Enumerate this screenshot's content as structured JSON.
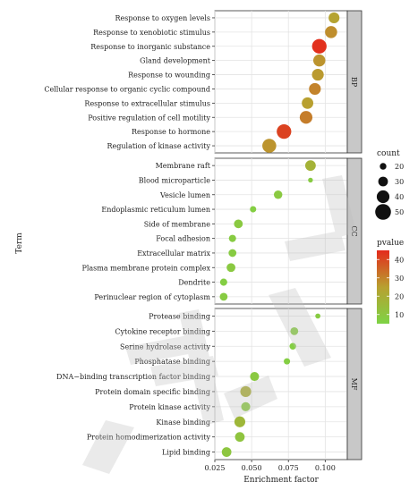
{
  "chart_data": {
    "type": "scatter",
    "xlabel": "Enrichment factor",
    "ylabel": "Term",
    "xlim": [
      0.025,
      0.115
    ],
    "xticks": [
      0.025,
      0.05,
      0.075,
      0.1
    ],
    "x_tick_labels": [
      "0.025",
      "0.050",
      "0.075",
      "0.100"
    ],
    "grid": true,
    "legend_position": "right",
    "size_legend": {
      "title": "count",
      "values": [
        20,
        30,
        40,
        50
      ]
    },
    "color_legend": {
      "title": "pvalue",
      "ticks": [
        10,
        20,
        30,
        40
      ],
      "range": [
        5,
        45
      ],
      "low_color": "#7ed345",
      "mid_color": "#b8a030",
      "high_color": "#e42a1c"
    },
    "panels": [
      {
        "name": "BP",
        "terms": [
          {
            "label": "Response to oxygen levels",
            "x": 0.106,
            "count": 34,
            "pvalue": 24
          },
          {
            "label": "Response to xenobiotic stimulus",
            "x": 0.104,
            "count": 38,
            "pvalue": 28
          },
          {
            "label": "Response to inorganic substance",
            "x": 0.096,
            "count": 46,
            "pvalue": 44
          },
          {
            "label": "Gland development",
            "x": 0.096,
            "count": 38,
            "pvalue": 27
          },
          {
            "label": "Response to wounding",
            "x": 0.095,
            "count": 37,
            "pvalue": 26
          },
          {
            "label": "Cellular response to organic cyclic compound",
            "x": 0.093,
            "count": 37,
            "pvalue": 30
          },
          {
            "label": "Response to extracellular stimulus",
            "x": 0.088,
            "count": 36,
            "pvalue": 25
          },
          {
            "label": "Positive regulation of cell motility",
            "x": 0.087,
            "count": 40,
            "pvalue": 31
          },
          {
            "label": "Response to hormone",
            "x": 0.072,
            "count": 46,
            "pvalue": 41
          },
          {
            "label": "Regulation of kinase activity",
            "x": 0.062,
            "count": 44,
            "pvalue": 27
          }
        ]
      },
      {
        "name": "CC",
        "terms": [
          {
            "label": "Membrane raft",
            "x": 0.09,
            "count": 33,
            "pvalue": 18
          },
          {
            "label": "Blood microparticle",
            "x": 0.09,
            "count": 14,
            "pvalue": 8
          },
          {
            "label": "Vesicle lumen",
            "x": 0.068,
            "count": 26,
            "pvalue": 9
          },
          {
            "label": "Endoplasmic reticulum lumen",
            "x": 0.051,
            "count": 19,
            "pvalue": 7
          },
          {
            "label": "Side of membrane",
            "x": 0.041,
            "count": 27,
            "pvalue": 9
          },
          {
            "label": "Focal adhesion",
            "x": 0.037,
            "count": 22,
            "pvalue": 8
          },
          {
            "label": "Extracellular matrix",
            "x": 0.037,
            "count": 24,
            "pvalue": 8
          },
          {
            "label": "Plasma membrane protein complex",
            "x": 0.036,
            "count": 27,
            "pvalue": 9
          },
          {
            "label": "Dendrite",
            "x": 0.031,
            "count": 22,
            "pvalue": 7
          },
          {
            "label": "Perinuclear region of cytoplasm",
            "x": 0.031,
            "count": 24,
            "pvalue": 8
          }
        ]
      },
      {
        "name": "MF",
        "terms": [
          {
            "label": "Protease binding",
            "x": 0.095,
            "count": 15,
            "pvalue": 8
          },
          {
            "label": "Cytokine receptor binding",
            "x": 0.079,
            "count": 24,
            "pvalue": 8
          },
          {
            "label": "Serine hydrolase activity",
            "x": 0.078,
            "count": 20,
            "pvalue": 7
          },
          {
            "label": "Phosphatase binding",
            "x": 0.074,
            "count": 19,
            "pvalue": 7
          },
          {
            "label": "DNA−binding transcription factor binding",
            "x": 0.052,
            "count": 28,
            "pvalue": 9
          },
          {
            "label": "Protein domain specific binding",
            "x": 0.046,
            "count": 34,
            "pvalue": 20
          },
          {
            "label": "Protein kinase activity",
            "x": 0.046,
            "count": 28,
            "pvalue": 9
          },
          {
            "label": "Kinase binding",
            "x": 0.042,
            "count": 34,
            "pvalue": 16
          },
          {
            "label": "Protein homodimerization activity",
            "x": 0.042,
            "count": 30,
            "pvalue": 11
          },
          {
            "label": "Lipid binding",
            "x": 0.033,
            "count": 30,
            "pvalue": 10
          }
        ]
      }
    ]
  },
  "watermark": {
    "text": "研中心",
    "color": "#cccccc"
  }
}
